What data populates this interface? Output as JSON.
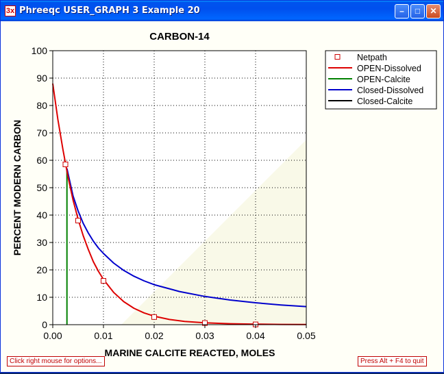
{
  "window": {
    "title": "Phreeqc USER_GRAPH 3 Example 20",
    "app_icon_text": "3x",
    "minimize_glyph": "–",
    "maximize_glyph": "□",
    "close_glyph": "✕"
  },
  "status": {
    "left_hint": "Click right mouse for options...",
    "right_hint": "Press Alt + F4 to quit"
  },
  "colors": {
    "netpath": "#cc0000",
    "open_dissolved": "#dd0000",
    "open_calcite": "#008000",
    "closed_dissolved": "#0000cc",
    "closed_calcite": "#000000"
  },
  "chart_data": {
    "type": "line",
    "title": "CARBON-14",
    "xlabel": "MARINE CALCITE REACTED, MOLES",
    "ylabel": "PERCENT MODERN CARBON",
    "xlim": [
      0,
      0.05
    ],
    "ylim": [
      0,
      100
    ],
    "x_ticks": [
      0,
      0.01,
      0.02,
      0.03,
      0.04,
      0.05
    ],
    "x_tick_labels": [
      "0.00",
      "0.01",
      "0.02",
      "0.03",
      "0.04",
      "0.05"
    ],
    "y_ticks": [
      0,
      10,
      20,
      30,
      40,
      50,
      60,
      70,
      80,
      90,
      100
    ],
    "y_tick_labels": [
      "0",
      "10",
      "20",
      "30",
      "40",
      "50",
      "60",
      "70",
      "80",
      "90",
      "100"
    ],
    "grid": "dotted",
    "legend_position": "top-right",
    "series": [
      {
        "name": "Netpath",
        "style": "markers",
        "marker": "open-square",
        "x": [
          0.0025,
          0.005,
          0.01,
          0.02,
          0.03,
          0.04
        ],
        "y": [
          58.5,
          38,
          16,
          2.8,
          0.6,
          0.1
        ]
      },
      {
        "name": "OPEN-Dissolved",
        "style": "line",
        "x": [
          0,
          0.001,
          0.002,
          0.003,
          0.004,
          0.005,
          0.006,
          0.007,
          0.008,
          0.009,
          0.01,
          0.012,
          0.014,
          0.016,
          0.018,
          0.02,
          0.023,
          0.026,
          0.03,
          0.035,
          0.04,
          0.045,
          0.05
        ],
        "y": [
          88,
          75,
          64,
          54,
          45.5,
          38.5,
          32.5,
          27.5,
          23,
          19.5,
          16.5,
          11.8,
          8.4,
          6,
          4.3,
          3.1,
          1.9,
          1.2,
          0.7,
          0.35,
          0.2,
          0.1,
          0.05
        ]
      },
      {
        "name": "OPEN-Calcite",
        "style": "line",
        "x": [
          0.0028,
          0.0028
        ],
        "y": [
          0,
          57
        ]
      },
      {
        "name": "Closed-Dissolved",
        "style": "line",
        "x": [
          0.0028,
          0.004,
          0.005,
          0.006,
          0.007,
          0.008,
          0.009,
          0.01,
          0.012,
          0.014,
          0.016,
          0.018,
          0.02,
          0.025,
          0.03,
          0.035,
          0.04,
          0.045,
          0.05
        ],
        "y": [
          57,
          47,
          41.5,
          37,
          33.5,
          30.5,
          28,
          26,
          22.5,
          19.8,
          17.7,
          16,
          14.6,
          12.1,
          10.3,
          9,
          8,
          7.2,
          6.6
        ]
      },
      {
        "name": "Closed-Calcite",
        "style": "line",
        "x": [],
        "y": []
      }
    ]
  }
}
